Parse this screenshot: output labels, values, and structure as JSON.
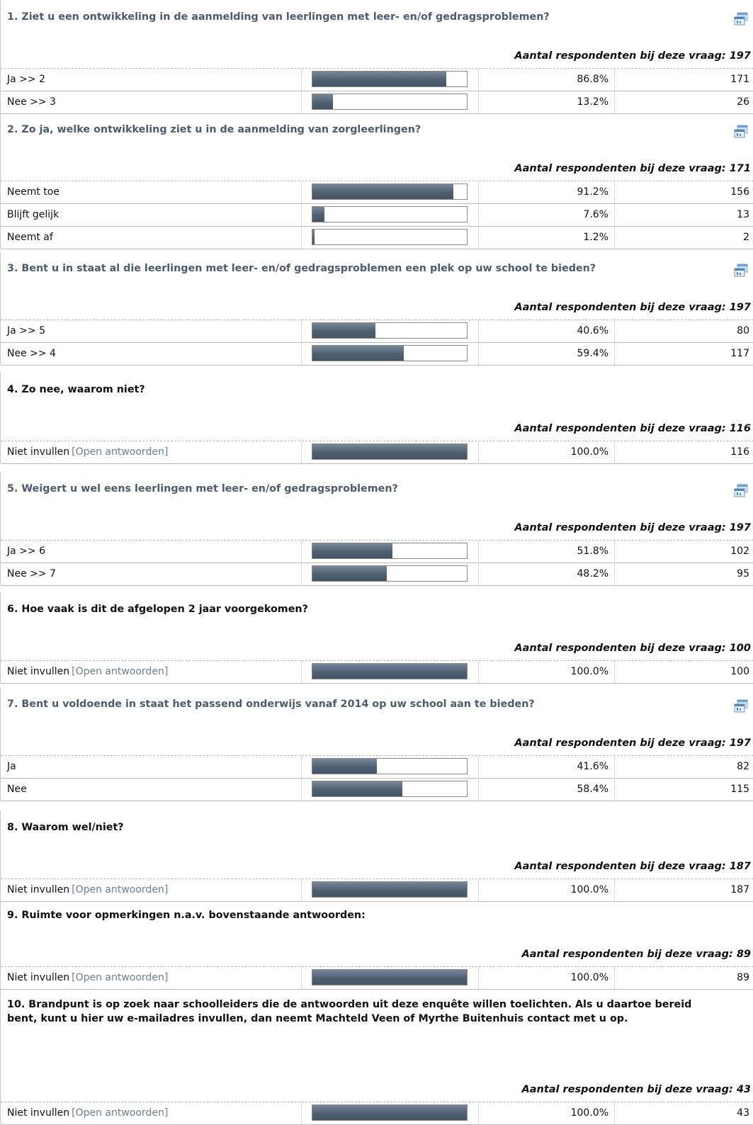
{
  "respondents_prefix": "Aantal respondenten bij deze vraag: ",
  "open_answers_label": "[Open antwoorden]",
  "colors": {
    "question_link": "#4a5c6e",
    "bar": "#526375",
    "open_link": "#6b7e95"
  },
  "icons": {
    "chart": "chart-popup-icon"
  },
  "questions": [
    {
      "title": "1. Ziet u een ontwikkeling in de aanmelding van leerlingen met leer- en/of gedragsproblemen?",
      "link": true,
      "respondents": "197",
      "answers": [
        {
          "label": "Ja >> 2",
          "fraction": 0.868,
          "percent": "86.8%",
          "count": "171"
        },
        {
          "label": "Nee >> 3",
          "fraction": 0.132,
          "percent": "13.2%",
          "count": "26"
        }
      ]
    },
    {
      "title": "2. Zo ja, welke ontwikkeling ziet u in de aanmelding van zorgleerlingen?",
      "link": true,
      "respondents": "171",
      "answers": [
        {
          "label": "Neemt toe",
          "fraction": 0.912,
          "percent": "91.2%",
          "count": "156"
        },
        {
          "label": "Blijft gelijk",
          "fraction": 0.076,
          "percent": "7.6%",
          "count": "13"
        },
        {
          "label": "Neemt af",
          "fraction": 0.012,
          "percent": "1.2%",
          "count": "2"
        }
      ]
    },
    {
      "title": "3. Bent u in staat al die leerlingen met leer- en/of gedragsproblemen een plek op uw school te bieden?",
      "link": true,
      "respondents": "197",
      "answers": [
        {
          "label": "Ja >> 5",
          "fraction": 0.406,
          "percent": "40.6%",
          "count": "80"
        },
        {
          "label": "Nee >> 4",
          "fraction": 0.594,
          "percent": "59.4%",
          "count": "117"
        }
      ]
    },
    {
      "title": "4. Zo nee, waarom niet?",
      "link": false,
      "respondents": "116",
      "answers": [
        {
          "label": "Niet invullen",
          "open": true,
          "fraction": 1.0,
          "percent": "100.0%",
          "count": "116"
        }
      ]
    },
    {
      "title": "5. Weigert u wel eens leerlingen met leer- en/of gedragsproblemen?",
      "link": true,
      "respondents": "197",
      "answers": [
        {
          "label": "Ja >> 6",
          "fraction": 0.518,
          "percent": "51.8%",
          "count": "102"
        },
        {
          "label": "Nee >> 7",
          "fraction": 0.482,
          "percent": "48.2%",
          "count": "95"
        }
      ]
    },
    {
      "title": "6. Hoe vaak is dit de afgelopen 2 jaar voorgekomen?",
      "link": false,
      "respondents": "100",
      "answers": [
        {
          "label": "Niet invullen",
          "open": true,
          "fraction": 1.0,
          "percent": "100.0%",
          "count": "100"
        }
      ]
    },
    {
      "title": "7. Bent u voldoende in staat het passend onderwijs vanaf 2014 op uw school aan te bieden?",
      "link": true,
      "respondents": "197",
      "answers": [
        {
          "label": "Ja",
          "fraction": 0.416,
          "percent": "41.6%",
          "count": "82"
        },
        {
          "label": "Nee",
          "fraction": 0.584,
          "percent": "58.4%",
          "count": "115"
        }
      ]
    },
    {
      "title": "8. Waarom wel/niet?",
      "link": false,
      "respondents": "187",
      "answers": [
        {
          "label": "Niet invullen",
          "open": true,
          "fraction": 1.0,
          "percent": "100.0%",
          "count": "187"
        }
      ]
    },
    {
      "title": "9. Ruimte voor opmerkingen n.a.v. bovenstaande antwoorden:",
      "link": false,
      "respondents": "89",
      "answers": [
        {
          "label": "Niet invullen",
          "open": true,
          "fraction": 1.0,
          "percent": "100.0%",
          "count": "89"
        }
      ]
    },
    {
      "title": "10. Brandpunt is op zoek naar schoolleiders die de antwoorden uit deze enquête willen toelichten. Als u daartoe bereid bent, kunt u hier uw e-mailadres invullen, dan neemt Machteld Veen of Myrthe Buitenhuis contact met u op.",
      "link": false,
      "respondents": "43",
      "answers": [
        {
          "label": "Niet invullen",
          "open": true,
          "fraction": 1.0,
          "percent": "100.0%",
          "count": "43"
        }
      ]
    }
  ]
}
